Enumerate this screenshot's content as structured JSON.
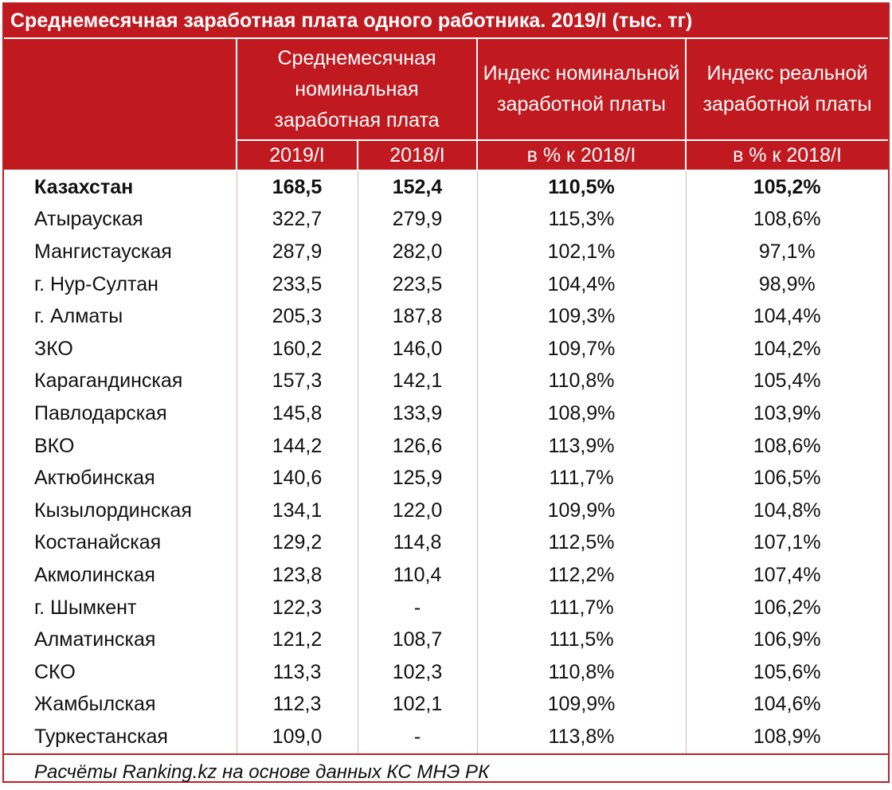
{
  "colors": {
    "accent": "#c0191f",
    "header_text": "#ffffff",
    "body_text": "#111111"
  },
  "chart_data": {
    "type": "table",
    "title": "Среднемесячная заработная плата одного работника. 2019/I (тыс. тг)",
    "header_groups": [
      "Среднемесячная номинальная заработная плата",
      "Индекс номинальной заработной платы",
      "Индекс реальной заработной платы"
    ],
    "subheaders": [
      "2019/I",
      "2018/I",
      "в % к 2018/I",
      "в % к 2018/I"
    ],
    "rows": [
      {
        "region": "Казахстан",
        "nominal_2019": "168,5",
        "nominal_2018": "152,4",
        "nominal_index": "110,5%",
        "real_index": "105,2%",
        "bold": true
      },
      {
        "region": "Атырауская",
        "nominal_2019": "322,7",
        "nominal_2018": "279,9",
        "nominal_index": "115,3%",
        "real_index": "108,6%"
      },
      {
        "region": "Мангистауская",
        "nominal_2019": "287,9",
        "nominal_2018": "282,0",
        "nominal_index": "102,1%",
        "real_index": "97,1%"
      },
      {
        "region": "г. Нур-Султан",
        "nominal_2019": "233,5",
        "nominal_2018": "223,5",
        "nominal_index": "104,4%",
        "real_index": "98,9%"
      },
      {
        "region": "г. Алматы",
        "nominal_2019": "205,3",
        "nominal_2018": "187,8",
        "nominal_index": "109,3%",
        "real_index": "104,4%"
      },
      {
        "region": "ЗКО",
        "nominal_2019": "160,2",
        "nominal_2018": "146,0",
        "nominal_index": "109,7%",
        "real_index": "104,2%"
      },
      {
        "region": "Карагандинская",
        "nominal_2019": "157,3",
        "nominal_2018": "142,1",
        "nominal_index": "110,8%",
        "real_index": "105,4%"
      },
      {
        "region": "Павлодарская",
        "nominal_2019": "145,8",
        "nominal_2018": "133,9",
        "nominal_index": "108,9%",
        "real_index": "103,9%"
      },
      {
        "region": "ВКО",
        "nominal_2019": "144,2",
        "nominal_2018": "126,6",
        "nominal_index": "113,9%",
        "real_index": "108,6%"
      },
      {
        "region": "Актюбинская",
        "nominal_2019": "140,6",
        "nominal_2018": "125,9",
        "nominal_index": "111,7%",
        "real_index": "106,5%"
      },
      {
        "region": "Кызылординская",
        "nominal_2019": "134,1",
        "nominal_2018": "122,0",
        "nominal_index": "109,9%",
        "real_index": "104,8%"
      },
      {
        "region": "Костанайская",
        "nominal_2019": "129,2",
        "nominal_2018": "114,8",
        "nominal_index": "112,5%",
        "real_index": "107,1%"
      },
      {
        "region": "Акмолинская",
        "nominal_2019": "123,8",
        "nominal_2018": "110,4",
        "nominal_index": "112,2%",
        "real_index": "107,4%"
      },
      {
        "region": "г. Шымкент",
        "nominal_2019": "122,3",
        "nominal_2018": "-",
        "nominal_index": "111,7%",
        "real_index": "106,2%"
      },
      {
        "region": "Алматинская",
        "nominal_2019": "121,2",
        "nominal_2018": "108,7",
        "nominal_index": "111,5%",
        "real_index": "106,9%"
      },
      {
        "region": "СКО",
        "nominal_2019": "113,3",
        "nominal_2018": "102,3",
        "nominal_index": "110,8%",
        "real_index": "105,6%"
      },
      {
        "region": "Жамбылская",
        "nominal_2019": "112,3",
        "nominal_2018": "102,1",
        "nominal_index": "109,9%",
        "real_index": "104,6%"
      },
      {
        "region": "Туркестанская",
        "nominal_2019": "109,0",
        "nominal_2018": "-",
        "nominal_index": "113,8%",
        "real_index": "108,9%"
      }
    ],
    "footnote": "Расчёты Ranking.kz на основе данных КС МНЭ РК"
  }
}
